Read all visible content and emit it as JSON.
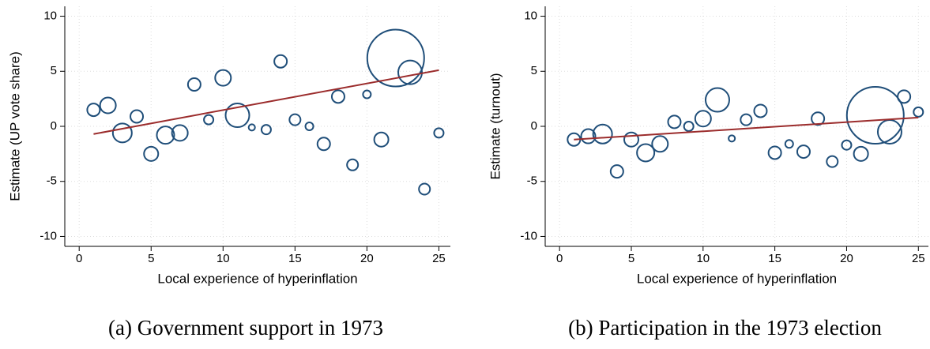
{
  "chart_data": [
    {
      "type": "scatter",
      "y_label": "Estimate (UP vote share)",
      "x_label": "Local experience of hyperinflation",
      "caption": "(a) Government support in 1973",
      "x": [
        1,
        2,
        3,
        4,
        5,
        6,
        7,
        8,
        9,
        10,
        11,
        12,
        13,
        14,
        15,
        16,
        17,
        18,
        19,
        20,
        21,
        22,
        23,
        24,
        25
      ],
      "y": [
        1.5,
        1.9,
        -0.6,
        0.9,
        -2.5,
        -0.8,
        -0.6,
        3.8,
        0.6,
        4.4,
        1.0,
        -0.1,
        -0.3,
        5.9,
        0.6,
        0.0,
        -1.6,
        2.7,
        -3.5,
        2.9,
        -1.2,
        6.2,
        4.9,
        -5.7,
        -0.6
      ],
      "sizes": [
        8,
        10,
        12,
        8,
        9,
        11,
        10,
        8,
        6,
        10,
        15,
        4,
        6,
        8,
        7,
        5,
        8,
        8,
        7,
        5,
        9,
        36,
        15,
        7,
        6
      ],
      "fit": {
        "x": [
          1,
          25
        ],
        "y": [
          -0.7,
          5.1
        ]
      },
      "color": "#1f4e79",
      "fit_color": "#9b2c2c",
      "xlim": [
        -1,
        25.8
      ],
      "ylim": [
        -10.9,
        10.9
      ],
      "xticks": [
        0,
        5,
        10,
        15,
        20,
        25
      ],
      "yticks": [
        -10,
        -5,
        0,
        5,
        10
      ],
      "grid": true
    },
    {
      "type": "scatter",
      "y_label": "Estimate (turnout)",
      "x_label": "Local experience of hyperinflation",
      "caption": "(b) Participation in the 1973 election",
      "x": [
        1,
        2,
        3,
        4,
        5,
        6,
        7,
        8,
        9,
        10,
        11,
        12,
        13,
        14,
        15,
        16,
        17,
        18,
        19,
        20,
        21,
        22,
        23,
        24,
        25
      ],
      "y": [
        -1.2,
        -0.9,
        -0.7,
        -4.1,
        -1.2,
        -2.4,
        -1.6,
        0.4,
        0.0,
        0.7,
        2.4,
        -1.1,
        0.6,
        1.4,
        -2.4,
        -1.6,
        -2.3,
        0.7,
        -3.2,
        -1.7,
        -2.5,
        1.0,
        -0.5,
        2.7,
        1.3
      ],
      "sizes": [
        8,
        9,
        12,
        8,
        9,
        11,
        10,
        8,
        6,
        10,
        15,
        4,
        7,
        8,
        8,
        5,
        8,
        8,
        7,
        6,
        9,
        36,
        15,
        8,
        6
      ],
      "fit": {
        "x": [
          1,
          25
        ],
        "y": [
          -1.2,
          0.8
        ]
      },
      "color": "#1f4e79",
      "fit_color": "#9b2c2c",
      "xlim": [
        -1,
        25.7
      ],
      "ylim": [
        -10.9,
        10.9
      ],
      "xticks": [
        0,
        5,
        10,
        15,
        20,
        25
      ],
      "yticks": [
        -10,
        -5,
        0,
        5,
        10
      ],
      "grid": true
    }
  ]
}
